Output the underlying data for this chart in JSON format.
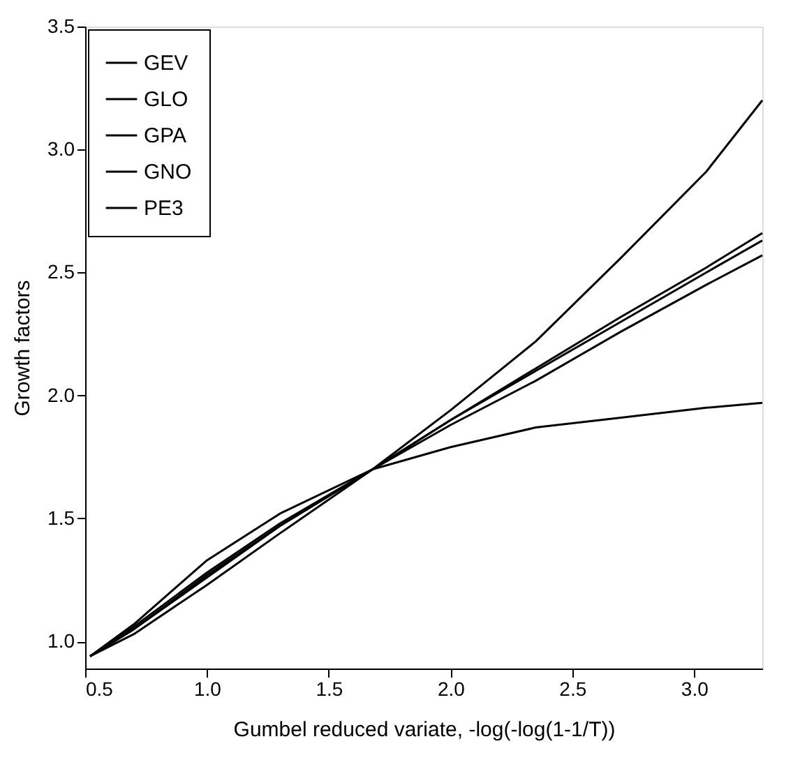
{
  "chart_data": {
    "type": "line",
    "xlabel": "Gumbel reduced variate, -log(-log(1-1/T))",
    "ylabel": "Growth factors",
    "x": [
      0.52,
      0.7,
      1.0,
      1.3,
      1.68,
      2.0,
      2.35,
      2.7,
      3.05,
      3.28
    ],
    "series": [
      {
        "name": "GEV",
        "color": "#000000",
        "values": [
          0.94,
          1.05,
          1.27,
          1.47,
          1.7,
          1.9,
          2.11,
          2.32,
          2.52,
          2.66
        ]
      },
      {
        "name": "GLO",
        "color": "#000000",
        "values": [
          0.94,
          1.03,
          1.23,
          1.44,
          1.7,
          1.94,
          2.22,
          2.56,
          2.91,
          3.2
        ]
      },
      {
        "name": "GPA",
        "color": "#000000",
        "values": [
          0.94,
          1.07,
          1.33,
          1.52,
          1.7,
          1.79,
          1.87,
          1.91,
          1.95,
          1.97
        ]
      },
      {
        "name": "GNO",
        "color": "#000000",
        "values": [
          0.94,
          1.05,
          1.26,
          1.47,
          1.7,
          1.9,
          2.1,
          2.3,
          2.5,
          2.63
        ]
      },
      {
        "name": "PE3",
        "color": "#000000",
        "values": [
          0.94,
          1.06,
          1.28,
          1.48,
          1.7,
          1.88,
          2.06,
          2.26,
          2.45,
          2.57
        ]
      }
    ],
    "xlim": [
      0.5,
      3.28
    ],
    "xticks": [
      0.5,
      {
        "value": 1,
        "label": "1.0"
      },
      1.5,
      {
        "value": 2,
        "label": "2.0"
      },
      2.5,
      {
        "value": 3,
        "label": "3.0"
      }
    ],
    "ylim": [
      0.89,
      3.5
    ],
    "yticks": [
      {
        "value": 1,
        "label": "1.0"
      },
      1.5,
      {
        "value": 2,
        "label": "2.0"
      },
      2.5,
      {
        "value": 3,
        "label": "3.0"
      },
      3.5
    ],
    "grid": false,
    "legend": "top left",
    "line_style": "solid",
    "marker": "none"
  }
}
